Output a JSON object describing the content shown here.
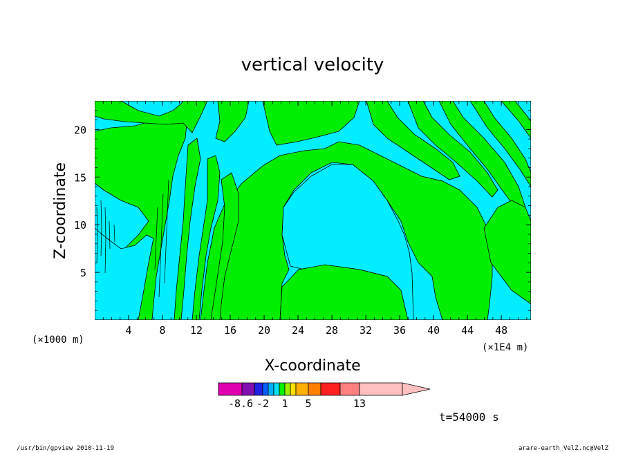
{
  "chart_data": {
    "type": "heatmap",
    "title": "vertical velocity",
    "xlabel": "X-coordinate",
    "ylabel": "Z-coordinate",
    "x_unit_left": "(×1000 m)",
    "x_unit_right": "(×1E4 m)",
    "xlim": [
      0,
      51.5
    ],
    "ylim": [
      0,
      23
    ],
    "x_ticks": [
      4,
      8,
      12,
      16,
      20,
      24,
      28,
      32,
      36,
      40,
      44,
      48
    ],
    "y_ticks": [
      5,
      10,
      15,
      20
    ],
    "x_tick_labels": [
      "4",
      "8",
      "12",
      "16",
      "20",
      "24",
      "28",
      "32",
      "36",
      "40",
      "44",
      "48"
    ],
    "y_tick_labels": [
      "5",
      "10",
      "15",
      "20"
    ],
    "fill_colors": {
      "negative_small": "#00eeff",
      "positive_small": "#00ee00"
    },
    "colorbar": {
      "colors": [
        "#e000b0",
        "#8010b0",
        "#2020e0",
        "#0060ff",
        "#00b0ff",
        "#00e0ff",
        "#00f000",
        "#a0f000",
        "#ffe000",
        "#ffb000",
        "#ff8000",
        "#ff2020",
        "#ff8080",
        "#ffc0c0"
      ],
      "labels": [
        "-8.6",
        "-2",
        "1",
        "5",
        "13"
      ],
      "extend": "right"
    },
    "time_label": "t=54000 s"
  },
  "footer": {
    "left": "/usr/bin/gpview  2010-11-19",
    "right": "arare-earth_VelZ.nc@VelZ"
  }
}
